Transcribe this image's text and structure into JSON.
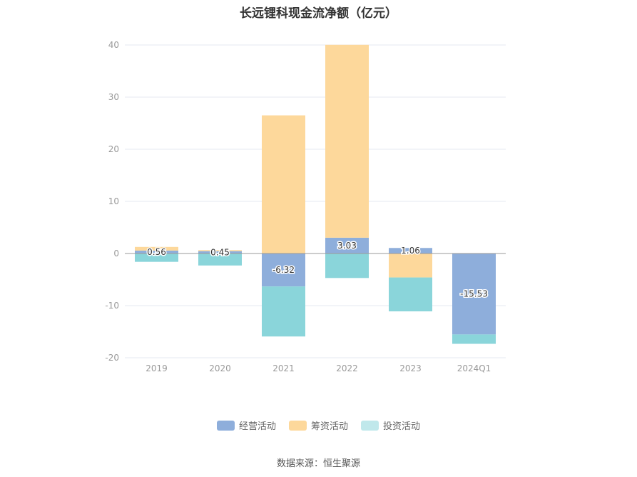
{
  "chart_data": {
    "type": "bar",
    "stacked": true,
    "title": "长远锂科现金流净额（亿元）",
    "categories": [
      "2019",
      "2020",
      "2021",
      "2022",
      "2023",
      "2024Q1"
    ],
    "ylim": [
      -20,
      40
    ],
    "yticks": [
      40,
      30,
      20,
      10,
      0,
      -10,
      -20
    ],
    "grid": true,
    "legend_position": "bottom",
    "series": [
      {
        "name": "经营活动",
        "color": "#8eaedb",
        "values": [
          0.56,
          0.45,
          -6.32,
          3.03,
          1.06,
          -15.53
        ],
        "labels": [
          "0.56",
          "0.45",
          "-6.32",
          "3.03",
          "1.06",
          "-15.53"
        ]
      },
      {
        "name": "筹资活动",
        "color": "#fdd89b",
        "values": [
          0.7,
          0.2,
          26.5,
          37.0,
          -4.6,
          0.0
        ]
      },
      {
        "name": "投资活动",
        "color": "#8ad5da",
        "values": [
          -1.6,
          -2.3,
          -9.6,
          -4.7,
          -6.5,
          -1.8
        ]
      }
    ]
  },
  "legend": {
    "items": [
      {
        "label": "经营活动",
        "color": "#8eaedb"
      },
      {
        "label": "筹资活动",
        "color": "#fdd89b"
      },
      {
        "label": "投资活动",
        "color": "#c0e8eb"
      }
    ]
  },
  "source": "数据来源：恒生聚源"
}
